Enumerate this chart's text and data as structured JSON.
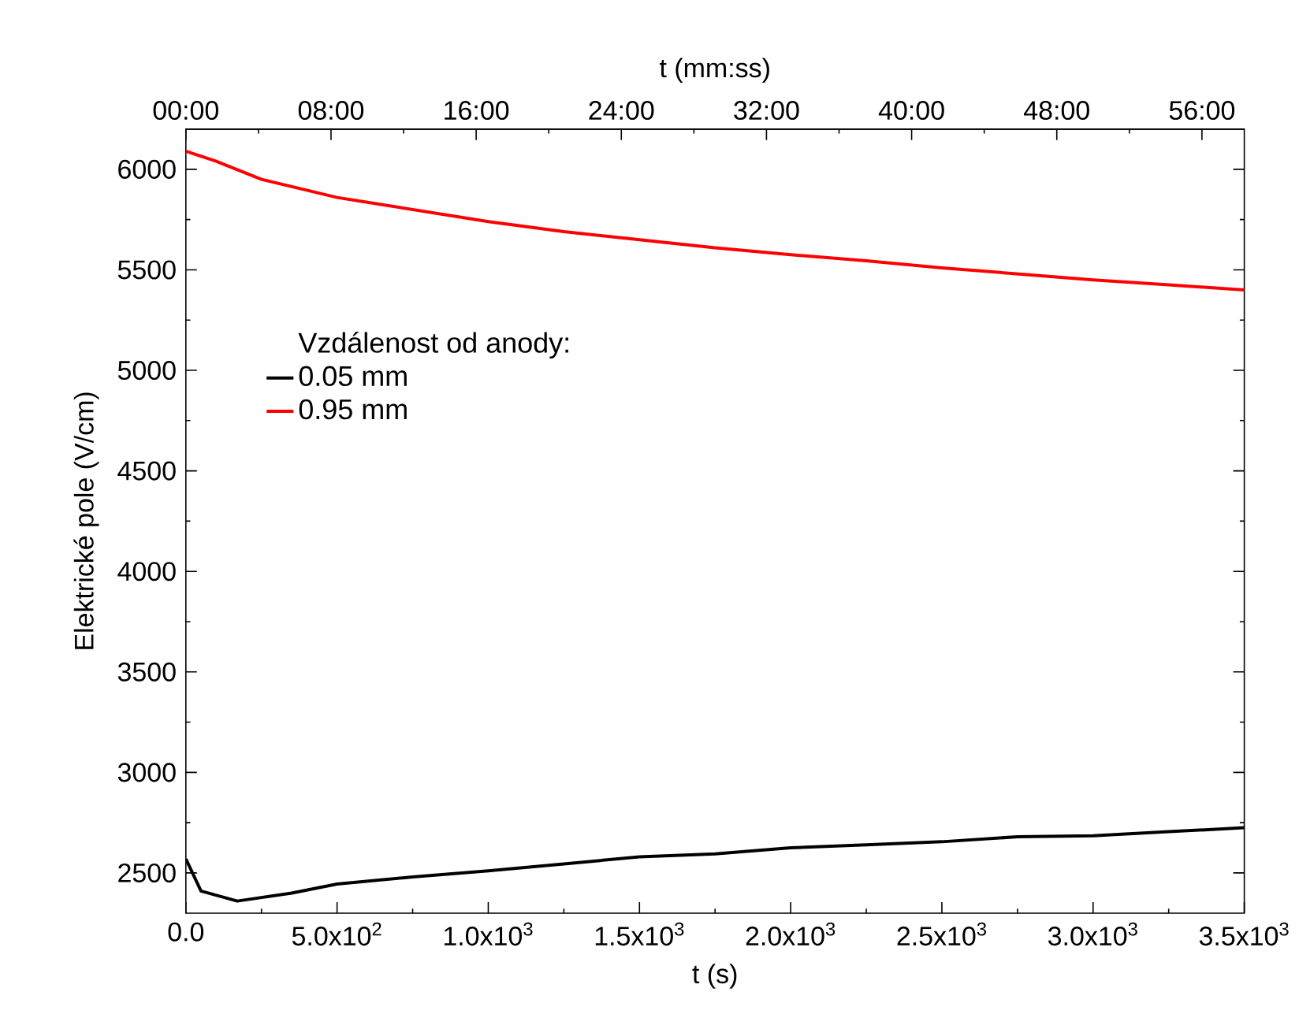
{
  "chart_data": {
    "type": "line",
    "xlabel": "t (s)",
    "ylabel": "Elektrické pole (V/cm)",
    "x2label": "t (mm:ss)",
    "legend_title": "Vzdálenost od anody:",
    "legend": "top left",
    "grid": false,
    "marker": "none",
    "line_style": "solid",
    "xlim": [
      0,
      3500
    ],
    "ylim": [
      2300,
      6200
    ],
    "xticks": [
      {
        "value": 0,
        "label": "0.0"
      },
      {
        "value": 500,
        "label": "5.0x10$^{2}$"
      },
      {
        "value": 1000,
        "label": "1.0x10$^{3}$"
      },
      {
        "value": 1500,
        "label": "1.5x10$^{3}$"
      },
      {
        "value": 2000,
        "label": "2.0x10$^{3}$"
      },
      {
        "value": 2500,
        "label": "2.5x10$^{3}$"
      },
      {
        "value": 3000,
        "label": "3.0x10$^{3}$"
      },
      {
        "value": 3500,
        "label": "3.5x10$^{3}$"
      }
    ],
    "yticks": [
      2500,
      3000,
      3500,
      4000,
      4500,
      5000,
      5500,
      6000
    ],
    "x2lim": [
      0,
      3500
    ],
    "x2ticks": [
      {
        "value": 0,
        "label": "00:00"
      },
      {
        "value": 480,
        "label": "08:00"
      },
      {
        "value": 960,
        "label": "16:00"
      },
      {
        "value": 1440,
        "label": "24:00"
      },
      {
        "value": 1920,
        "label": "32:00"
      },
      {
        "value": 2400,
        "label": "40:00"
      },
      {
        "value": 2880,
        "label": "48:00"
      },
      {
        "value": 3360,
        "label": "56:00"
      }
    ],
    "series": [
      {
        "name": "0.05 mm",
        "color": "#000000",
        "x": [
          0,
          50,
          170,
          350,
          500,
          750,
          1000,
          1250,
          1500,
          1750,
          2000,
          2250,
          2500,
          2750,
          3000,
          3250,
          3500
        ],
        "values": [
          2570,
          2410,
          2360,
          2400,
          2445,
          2480,
          2510,
          2545,
          2580,
          2595,
          2625,
          2640,
          2655,
          2680,
          2685,
          2705,
          2725
        ]
      },
      {
        "name": "0.95 mm",
        "color": "#ff0000",
        "x": [
          0,
          100,
          250,
          500,
          750,
          1000,
          1250,
          1500,
          1750,
          2000,
          2250,
          2500,
          2750,
          3000,
          3250,
          3500
        ],
        "values": [
          6090,
          6040,
          5950,
          5860,
          5800,
          5740,
          5690,
          5650,
          5610,
          5575,
          5545,
          5510,
          5480,
          5450,
          5425,
          5400
        ]
      }
    ]
  }
}
